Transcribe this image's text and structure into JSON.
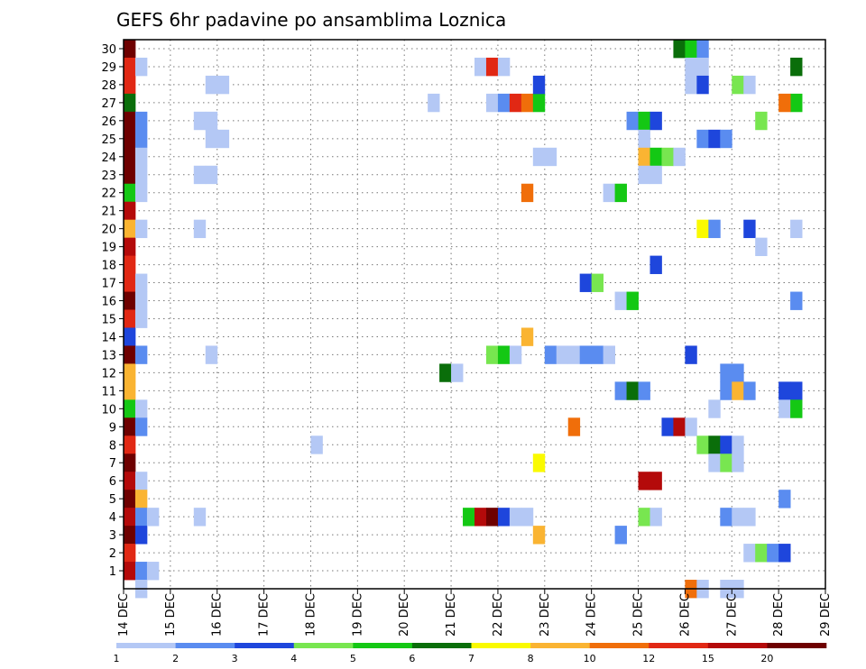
{
  "chart_data": {
    "type": "heatmap",
    "title": "GEFS 6hr padavine po ansamblima Loznica",
    "x_ticks": [
      "14 DEC",
      "15 DEC",
      "16 DEC",
      "17 DEC",
      "18 DEC",
      "19 DEC",
      "20 DEC",
      "21 DEC",
      "22 DEC",
      "23 DEC",
      "24 DEC",
      "25 DEC",
      "26 DEC",
      "27 DEC",
      "28 DEC",
      "29 DEC"
    ],
    "y_ticks": [
      "1",
      "2",
      "3",
      "4",
      "5",
      "6",
      "7",
      "8",
      "9",
      "10",
      "11",
      "12",
      "13",
      "14",
      "15",
      "16",
      "17",
      "18",
      "19",
      "20",
      "21",
      "22",
      "23",
      "24",
      "25",
      "26",
      "27",
      "28",
      "29",
      "30"
    ],
    "steps_per_day": 4,
    "xlim": [
      0,
      60
    ],
    "ylim": [
      0,
      30
    ],
    "grid": true,
    "colorbar": {
      "tick_labels": [
        "1",
        "2",
        "3",
        "4",
        "5",
        "6",
        "7",
        "8",
        "10",
        "12",
        "15",
        "20"
      ],
      "colors": [
        "#b4c8f5",
        "#5a8cf0",
        "#1e46dc",
        "#78e650",
        "#14c814",
        "#0a6e0a",
        "#fafa00",
        "#fab432",
        "#f06e0a",
        "#e12814",
        "#b40a0a",
        "#6e0000"
      ]
    },
    "cells": [
      [
        0,
        30,
        11
      ],
      [
        0,
        29,
        9
      ],
      [
        0,
        28,
        9
      ],
      [
        0,
        27,
        5
      ],
      [
        0,
        26,
        11
      ],
      [
        0,
        25,
        11
      ],
      [
        0,
        24,
        11
      ],
      [
        0,
        23,
        11
      ],
      [
        0,
        22,
        4
      ],
      [
        0,
        21,
        10
      ],
      [
        0,
        20,
        7
      ],
      [
        0,
        19,
        10
      ],
      [
        0,
        18,
        9
      ],
      [
        0,
        17,
        9
      ],
      [
        0,
        16,
        11
      ],
      [
        0,
        15,
        9
      ],
      [
        0,
        14,
        2
      ],
      [
        0,
        13,
        11
      ],
      [
        0,
        12,
        7
      ],
      [
        0,
        11,
        7
      ],
      [
        0,
        10,
        4
      ],
      [
        0,
        9,
        11
      ],
      [
        0,
        8,
        9
      ],
      [
        0,
        7,
        11
      ],
      [
        0,
        6,
        10
      ],
      [
        0,
        5,
        11
      ],
      [
        0,
        4,
        10
      ],
      [
        0,
        3,
        11
      ],
      [
        0,
        2,
        9
      ],
      [
        0,
        1,
        10
      ],
      [
        1,
        29,
        0
      ],
      [
        1,
        26,
        1
      ],
      [
        1,
        25,
        1
      ],
      [
        1,
        24,
        0
      ],
      [
        1,
        23,
        0
      ],
      [
        1,
        22,
        0
      ],
      [
        1,
        20,
        0
      ],
      [
        1,
        17,
        0
      ],
      [
        1,
        16,
        0
      ],
      [
        1,
        15,
        0
      ],
      [
        1,
        13,
        1
      ],
      [
        1,
        10,
        0
      ],
      [
        1,
        9,
        1
      ],
      [
        1,
        6,
        0
      ],
      [
        1,
        5,
        7
      ],
      [
        1,
        4,
        1
      ],
      [
        1,
        3,
        2
      ],
      [
        1,
        1,
        1
      ],
      [
        1,
        0,
        0
      ],
      [
        2,
        4,
        0
      ],
      [
        2,
        1,
        0
      ],
      [
        6,
        26,
        0
      ],
      [
        6,
        23,
        0
      ],
      [
        6,
        20,
        0
      ],
      [
        6,
        4,
        0
      ],
      [
        7,
        28,
        0
      ],
      [
        7,
        26,
        0
      ],
      [
        7,
        25,
        0
      ],
      [
        7,
        23,
        0
      ],
      [
        7,
        13,
        0
      ],
      [
        8,
        28,
        0
      ],
      [
        8,
        25,
        0
      ],
      [
        16,
        8,
        0
      ],
      [
        26,
        27,
        0
      ],
      [
        27,
        12,
        5
      ],
      [
        28,
        12,
        0
      ],
      [
        29,
        4,
        4
      ],
      [
        30,
        4,
        10
      ],
      [
        30,
        29,
        0
      ],
      [
        31,
        29,
        9
      ],
      [
        31,
        4,
        11
      ],
      [
        32,
        29,
        0
      ],
      [
        31,
        27,
        0
      ],
      [
        32,
        27,
        1
      ],
      [
        32,
        4,
        2
      ],
      [
        33,
        27,
        9
      ],
      [
        33,
        4,
        0
      ],
      [
        34,
        27,
        8
      ],
      [
        34,
        4,
        0
      ],
      [
        35,
        27,
        4
      ],
      [
        35,
        28,
        2
      ],
      [
        31,
        13,
        3
      ],
      [
        32,
        13,
        4
      ],
      [
        33,
        13,
        0
      ],
      [
        34,
        14,
        7
      ],
      [
        34,
        22,
        8
      ],
      [
        35,
        24,
        0
      ],
      [
        35,
        7,
        6
      ],
      [
        35,
        3,
        7
      ],
      [
        36,
        24,
        0
      ],
      [
        36,
        13,
        1
      ],
      [
        37,
        13,
        0
      ],
      [
        38,
        13,
        0
      ],
      [
        38,
        9,
        8
      ],
      [
        39,
        17,
        2
      ],
      [
        39,
        13,
        1
      ],
      [
        40,
        17,
        3
      ],
      [
        40,
        13,
        1
      ],
      [
        41,
        22,
        0
      ],
      [
        41,
        13,
        0
      ],
      [
        42,
        22,
        4
      ],
      [
        42,
        16,
        0
      ],
      [
        42,
        11,
        1
      ],
      [
        42,
        3,
        1
      ],
      [
        43,
        11,
        5
      ],
      [
        43,
        26,
        1
      ],
      [
        43,
        16,
        4
      ],
      [
        44,
        26,
        4
      ],
      [
        44,
        25,
        0
      ],
      [
        45,
        26,
        2
      ],
      [
        44,
        24,
        7
      ],
      [
        45,
        24,
        4
      ],
      [
        46,
        24,
        3
      ],
      [
        47,
        24,
        0
      ],
      [
        44,
        23,
        0
      ],
      [
        45,
        23,
        0
      ],
      [
        44,
        11,
        1
      ],
      [
        44,
        6,
        10
      ],
      [
        45,
        6,
        10
      ],
      [
        44,
        4,
        3
      ],
      [
        45,
        4,
        0
      ],
      [
        45,
        18,
        2
      ],
      [
        46,
        9,
        2
      ],
      [
        47,
        9,
        10
      ],
      [
        48,
        9,
        0
      ],
      [
        47,
        30,
        5
      ],
      [
        48,
        30,
        4
      ],
      [
        49,
        30,
        1
      ],
      [
        48,
        29,
        0
      ],
      [
        49,
        29,
        0
      ],
      [
        48,
        28,
        0
      ],
      [
        49,
        28,
        2
      ],
      [
        48,
        13,
        2
      ],
      [
        48,
        0,
        8
      ],
      [
        49,
        0,
        0
      ],
      [
        49,
        20,
        6
      ],
      [
        50,
        20,
        1
      ],
      [
        49,
        25,
        1
      ],
      [
        50,
        25,
        2
      ],
      [
        51,
        25,
        1
      ],
      [
        49,
        8,
        3
      ],
      [
        50,
        8,
        5
      ],
      [
        51,
        8,
        2
      ],
      [
        52,
        8,
        0
      ],
      [
        50,
        10,
        0
      ],
      [
        50,
        7,
        0
      ],
      [
        51,
        7,
        3
      ],
      [
        52,
        7,
        0
      ],
      [
        51,
        12,
        1
      ],
      [
        52,
        12,
        1
      ],
      [
        51,
        11,
        1
      ],
      [
        52,
        11,
        7
      ],
      [
        53,
        11,
        1
      ],
      [
        51,
        4,
        1
      ],
      [
        52,
        4,
        0
      ],
      [
        53,
        4,
        0
      ],
      [
        52,
        28,
        3
      ],
      [
        53,
        28,
        0
      ],
      [
        51,
        0,
        0
      ],
      [
        52,
        0,
        0
      ],
      [
        53,
        20,
        2
      ],
      [
        54,
        19,
        0
      ],
      [
        54,
        26,
        3
      ],
      [
        53,
        2,
        0
      ],
      [
        54,
        2,
        3
      ],
      [
        55,
        2,
        1
      ],
      [
        56,
        2,
        2
      ],
      [
        56,
        11,
        2
      ],
      [
        57,
        11,
        2
      ],
      [
        56,
        10,
        0
      ],
      [
        57,
        10,
        4
      ],
      [
        56,
        5,
        1
      ],
      [
        57,
        29,
        5
      ],
      [
        57,
        27,
        4
      ],
      [
        56,
        27,
        8
      ],
      [
        57,
        20,
        0
      ],
      [
        57,
        16,
        1
      ]
    ]
  }
}
